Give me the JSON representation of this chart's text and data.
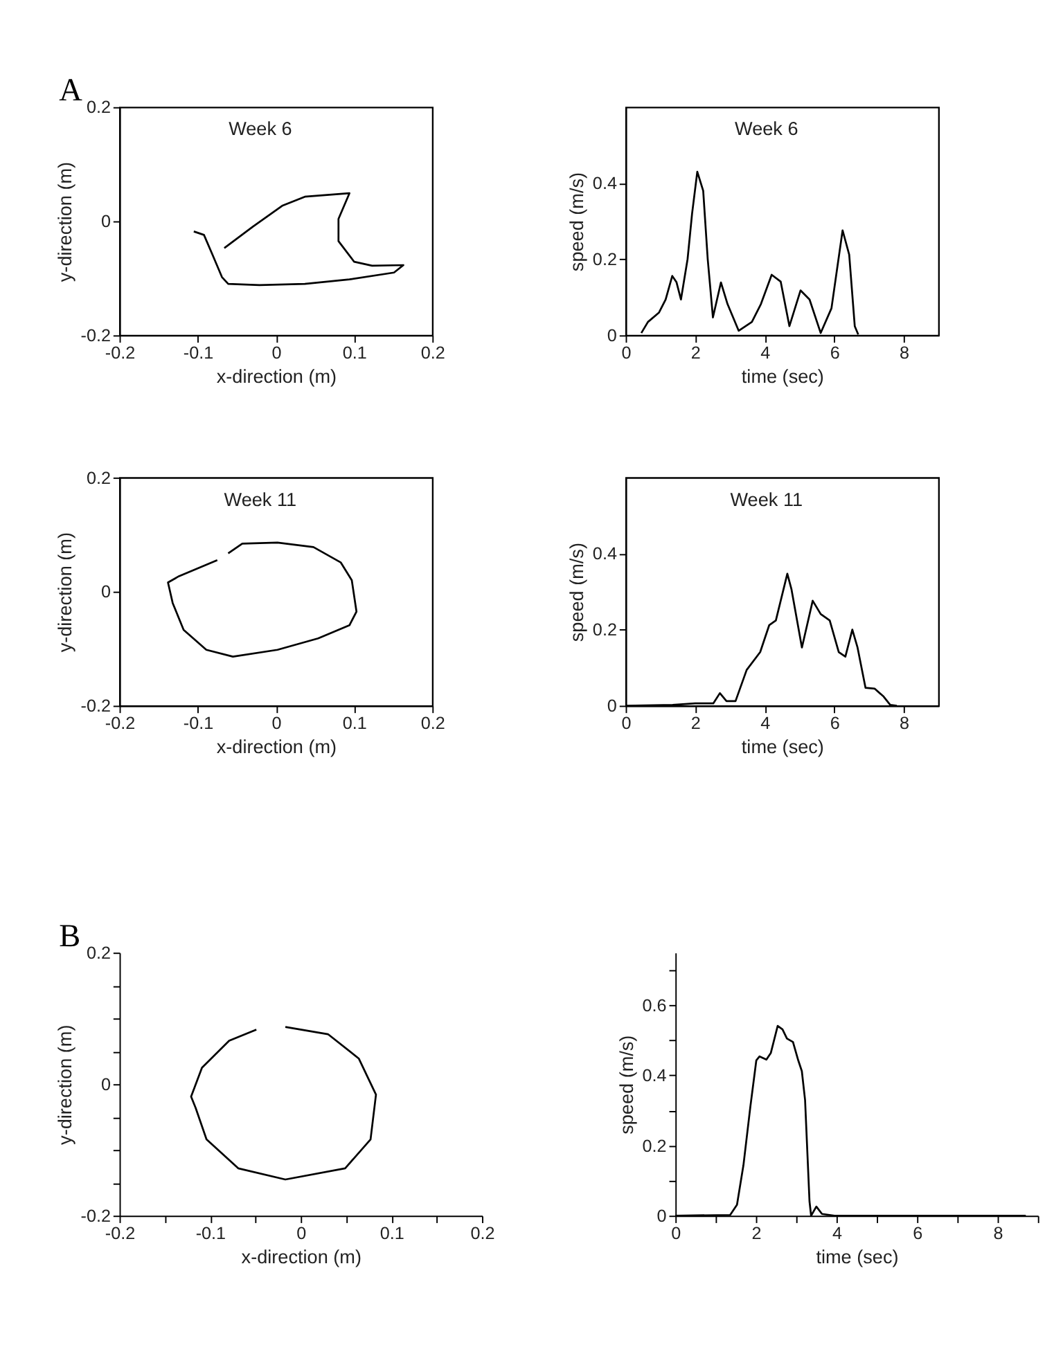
{
  "chart_data": [
    {
      "type": "line",
      "title": "Week 6",
      "annotations": [
        "A"
      ],
      "xlabel": "x-direction (m)",
      "ylabel": "y-direction (m)",
      "xlim": [
        -0.2,
        0.2
      ],
      "ylim": [
        -0.2,
        0.2
      ],
      "xticks": [
        -0.2,
        -0.1,
        0,
        0.1,
        0.2
      ],
      "yticks": [
        -0.2,
        0,
        0.2
      ],
      "grid": false,
      "marker": "none",
      "line_style": "solid",
      "series": [
        {
          "color": "#000000",
          "x": [
            -0.066,
            -0.03,
            0.008,
            0.037,
            0.094,
            0.08,
            0.08,
            0.1,
            0.123,
            0.163,
            0.151,
            0.094,
            0.037,
            -0.021,
            -0.061,
            -0.069,
            -0.081,
            -0.092,
            -0.105
          ],
          "values": [
            -0.047,
            -0.01,
            0.027,
            0.043,
            0.049,
            0.004,
            -0.035,
            -0.071,
            -0.078,
            -0.077,
            -0.09,
            -0.102,
            -0.11,
            -0.112,
            -0.11,
            -0.098,
            -0.059,
            -0.024,
            -0.018
          ]
        }
      ]
    },
    {
      "type": "line",
      "title": "Week 6",
      "xlabel": "time (sec)",
      "ylabel": "speed (m/s)",
      "xlim": [
        0,
        9
      ],
      "ylim": [
        0,
        0.6
      ],
      "xticks": [
        0,
        2,
        4,
        6,
        8
      ],
      "yticks": [
        0,
        0.2,
        0.4
      ],
      "grid": false,
      "marker": "none",
      "line_style": "solid",
      "series": [
        {
          "color": "#000000",
          "x": [
            0.45,
            0.64,
            0.96,
            1.15,
            1.34,
            1.46,
            1.59,
            1.78,
            1.91,
            2.06,
            2.23,
            2.36,
            2.51,
            2.74,
            2.93,
            3.25,
            3.63,
            3.89,
            4.2,
            4.46,
            4.71,
            5.03,
            5.29,
            5.61,
            5.92,
            6.24,
            6.43,
            6.59,
            6.69
          ],
          "values": [
            0.006,
            0.035,
            0.06,
            0.094,
            0.156,
            0.14,
            0.094,
            0.2,
            0.32,
            0.43,
            0.38,
            0.2,
            0.047,
            0.139,
            0.082,
            0.012,
            0.035,
            0.082,
            0.159,
            0.141,
            0.024,
            0.118,
            0.094,
            0.006,
            0.071,
            0.276,
            0.212,
            0.024,
            0.002
          ]
        }
      ]
    },
    {
      "type": "line",
      "title": "Week 11",
      "xlabel": "x-direction (m)",
      "ylabel": "y-direction (m)",
      "xlim": [
        -0.2,
        0.2
      ],
      "ylim": [
        -0.2,
        0.2
      ],
      "xticks": [
        -0.2,
        -0.1,
        0,
        0.1,
        0.2
      ],
      "yticks": [
        -0.2,
        0,
        0.2
      ],
      "grid": false,
      "marker": "none",
      "line_style": "solid",
      "series": [
        {
          "color": "#000000",
          "x": [
            -0.061,
            -0.043,
            0.002,
            0.048,
            0.083,
            0.097,
            0.103,
            0.094,
            0.054,
            0.002,
            -0.055,
            -0.089,
            -0.118,
            -0.132,
            -0.138,
            -0.124,
            -0.075
          ],
          "values": [
            0.067,
            0.084,
            0.086,
            0.078,
            0.051,
            0.02,
            -0.035,
            -0.059,
            -0.082,
            -0.102,
            -0.114,
            -0.102,
            -0.067,
            -0.02,
            0.016,
            0.027,
            0.055
          ]
        }
      ]
    },
    {
      "type": "line",
      "title": "Week 11",
      "xlabel": "time (sec)",
      "ylabel": "speed (m/s)",
      "xlim": [
        0,
        9
      ],
      "ylim": [
        0,
        0.6
      ],
      "xticks": [
        0,
        2,
        4,
        6,
        8
      ],
      "yticks": [
        0,
        0.2,
        0.4
      ],
      "grid": false,
      "marker": "none",
      "line_style": "solid",
      "series": [
        {
          "color": "#000000",
          "x": [
            0,
            1.35,
            2,
            2.52,
            2.71,
            2.9,
            3.16,
            3.48,
            3.87,
            4.13,
            4.32,
            4.65,
            4.77,
            5.07,
            5.38,
            5.61,
            5.87,
            6.13,
            6.32,
            6.52,
            6.67,
            6.9,
            7.16,
            7.42,
            7.61,
            7.8
          ],
          "values": [
            0,
            0.002,
            0.006,
            0.006,
            0.033,
            0.012,
            0.012,
            0.094,
            0.141,
            0.212,
            0.224,
            0.347,
            0.306,
            0.153,
            0.276,
            0.241,
            0.224,
            0.141,
            0.129,
            0.2,
            0.153,
            0.047,
            0.045,
            0.024,
            0.002,
            0
          ]
        }
      ]
    },
    {
      "type": "line",
      "annotations": [
        "B"
      ],
      "xlabel": "x-direction (m)",
      "ylabel": "y-direction (m)",
      "xlim": [
        -0.2,
        0.2
      ],
      "ylim": [
        -0.2,
        0.2
      ],
      "xticks": [
        -0.2,
        {
          "value": -0.15,
          "label": null
        },
        -0.1,
        {
          "value": -0.05,
          "label": null
        },
        0,
        {
          "value": 0.05,
          "label": null
        },
        0.1,
        {
          "value": 0.15,
          "label": null
        },
        0.2
      ],
      "yticks": [
        -0.2,
        {
          "value": -0.15,
          "label": null
        },
        {
          "value": -0.1,
          "label": null
        },
        {
          "value": -0.05,
          "label": null
        },
        0,
        {
          "value": 0.05,
          "label": null
        },
        {
          "value": 0.1,
          "label": null
        },
        {
          "value": 0.15,
          "label": null
        },
        0.2
      ],
      "grid": false,
      "marker": "none",
      "line_style": "solid",
      "series": [
        {
          "color": "#000000",
          "x": [
            -0.017,
            0.03,
            0.064,
            0.083,
            0.077,
            0.049,
            -0.017,
            -0.069,
            -0.104,
            -0.116,
            -0.121,
            -0.109,
            -0.079,
            -0.049
          ],
          "values": [
            0.087,
            0.076,
            0.039,
            -0.016,
            -0.084,
            -0.128,
            -0.145,
            -0.128,
            -0.084,
            -0.036,
            -0.019,
            0.025,
            0.066,
            0.083
          ]
        }
      ]
    },
    {
      "type": "line",
      "xlabel": "time (sec)",
      "ylabel": "speed (m/s)",
      "xlim": [
        0,
        9
      ],
      "ylim": [
        0,
        0.75
      ],
      "xticks": [
        0,
        {
          "value": 1,
          "label": null
        },
        2,
        {
          "value": 3,
          "label": null
        },
        4,
        {
          "value": 5,
          "label": null
        },
        6,
        {
          "value": 7,
          "label": null
        },
        8,
        {
          "value": 9,
          "label": null
        }
      ],
      "yticks": [
        0,
        {
          "value": 0.1,
          "label": null
        },
        0.2,
        {
          "value": 0.3,
          "label": null
        },
        0.4,
        {
          "value": 0.5,
          "label": null
        },
        0.6,
        {
          "value": 0.7,
          "label": null
        }
      ],
      "grid": false,
      "marker": "none",
      "line_style": "solid",
      "series": [
        {
          "color": "#000000",
          "x": [
            0,
            1.36,
            1.53,
            1.69,
            1.86,
            2.01,
            2.09,
            2.26,
            2.37,
            2.54,
            2.66,
            2.77,
            2.92,
            3.05,
            3.14,
            3.22,
            3.33,
            3.37,
            3.5,
            3.64,
            3.95,
            8.7
          ],
          "values": [
            0,
            0.002,
            0.031,
            0.144,
            0.309,
            0.443,
            0.454,
            0.445,
            0.464,
            0.541,
            0.531,
            0.505,
            0.495,
            0.443,
            0.412,
            0.33,
            0.041,
            0,
            0.026,
            0.005,
            0,
            0
          ]
        }
      ]
    }
  ]
}
